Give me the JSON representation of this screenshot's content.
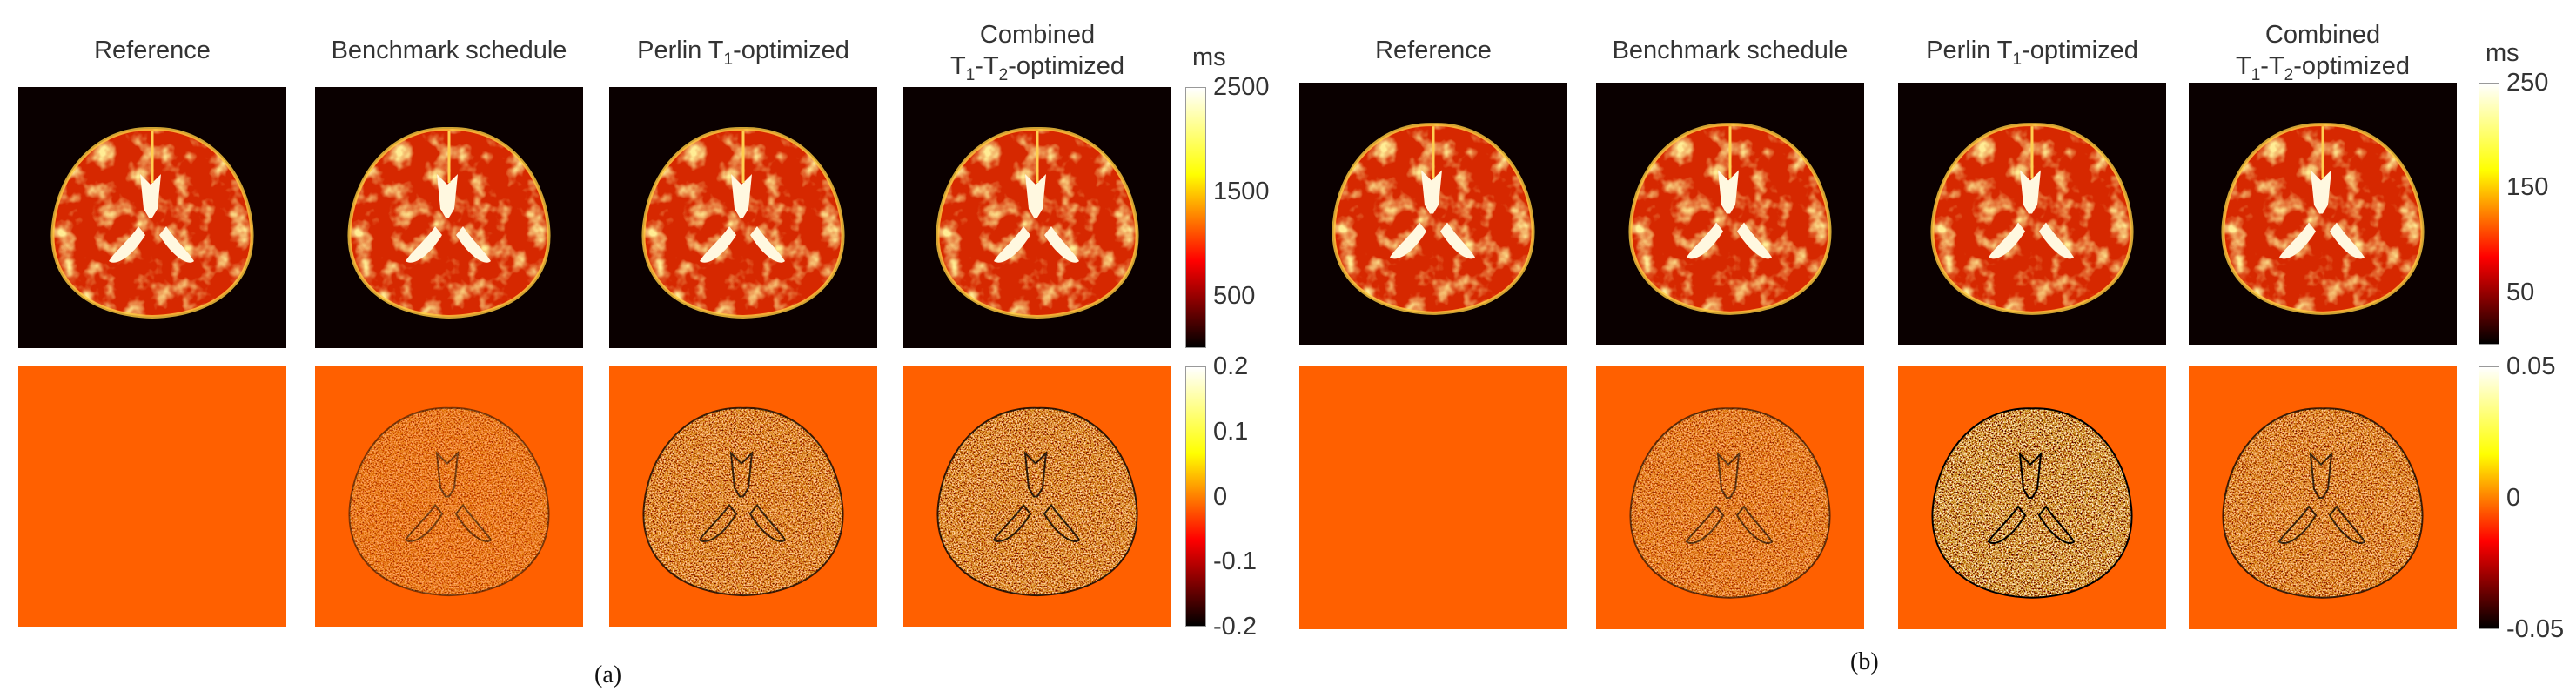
{
  "panels": [
    {
      "label": "(a)",
      "columns": [
        {
          "title": "Reference"
        },
        {
          "title": "Benchmark schedule"
        },
        {
          "title": "Perlin T",
          "sub": "1",
          "rest": "-optimized"
        },
        {
          "title": "Combined",
          "line2": [
            "T",
            "1",
            "-T",
            "2",
            "-optimized"
          ]
        }
      ],
      "top_colorbar": {
        "unit": "ms",
        "range": [
          0,
          2500
        ],
        "ticks": [
          "2500",
          "1500",
          "500"
        ],
        "tick_values": [
          2500,
          1500,
          500
        ]
      },
      "bottom_colorbar": {
        "range": [
          -0.2,
          0.2
        ],
        "ticks": [
          "0.2",
          "0.1",
          "0",
          "-0.1",
          "-0.2"
        ],
        "tick_values": [
          0.2,
          0.1,
          0,
          -0.1,
          -0.2
        ]
      },
      "difference_noise": [
        0,
        0.5,
        0.75,
        0.8
      ]
    },
    {
      "label": "(b)",
      "columns": [
        {
          "title": "Reference"
        },
        {
          "title": "Benchmark schedule"
        },
        {
          "title": "Perlin T",
          "sub": "1",
          "rest": "-optimized"
        },
        {
          "title": "Combined",
          "line2": [
            "T",
            "1",
            "-T",
            "2",
            "-optimized"
          ]
        }
      ],
      "top_colorbar": {
        "unit": "ms",
        "range": [
          0,
          250
        ],
        "ticks": [
          "250",
          "150",
          "50"
        ],
        "tick_values": [
          250,
          150,
          50
        ]
      },
      "bottom_colorbar": {
        "range": [
          -0.05,
          0.05
        ],
        "ticks": [
          "0.05",
          "0",
          "-0.05"
        ],
        "tick_values": [
          0.05,
          0,
          -0.05
        ]
      },
      "difference_noise": [
        0,
        0.6,
        1,
        0.75
      ]
    }
  ],
  "colors": {
    "map_background": "#0a0000",
    "difference_background": "#ff6000",
    "colormap": [
      "#000000",
      "#ff0000",
      "#ffff00",
      "#ffffff"
    ]
  }
}
